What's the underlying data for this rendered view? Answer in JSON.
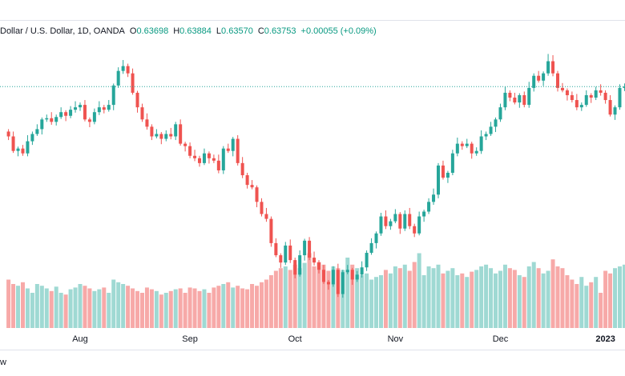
{
  "chart_data": {
    "type": "candlestick",
    "title": "Dollar / U.S. Dollar, 1D, OANDA",
    "ohlc_keys": [
      "O",
      "H",
      "L",
      "C"
    ],
    "last_labels": [
      "0.63698",
      "0.63884",
      "0.63570",
      "0.63753"
    ],
    "change": "+0.00055 (+0.09%)",
    "categories": [
      null,
      null,
      null,
      null,
      null,
      null,
      null,
      null,
      null,
      null,
      null,
      null,
      null,
      null,
      null,
      "Aug",
      null,
      null,
      null,
      null,
      null,
      null,
      null,
      null,
      null,
      null,
      null,
      null,
      null,
      null,
      null,
      null,
      null,
      null,
      null,
      null,
      null,
      null,
      "Sep",
      null,
      null,
      null,
      null,
      null,
      null,
      null,
      null,
      null,
      null,
      null,
      null,
      null,
      null,
      null,
      null,
      null,
      null,
      null,
      null,
      null,
      "Oct",
      null,
      null,
      null,
      null,
      null,
      null,
      null,
      null,
      null,
      null,
      null,
      null,
      null,
      null,
      null,
      null,
      null,
      null,
      null,
      null,
      "Nov",
      null,
      null,
      null,
      null,
      null,
      null,
      null,
      null,
      null,
      null,
      null,
      null,
      null,
      null,
      null,
      null,
      null,
      null,
      null,
      null,
      null,
      "Dec",
      null,
      null,
      null,
      null,
      null,
      null,
      null,
      null,
      null,
      null,
      null,
      null,
      null,
      null,
      null,
      null,
      null,
      null,
      null,
      null,
      null,
      "2023",
      null,
      null,
      null,
      null
    ],
    "open": [
      0.619,
      0.617,
      0.611,
      0.612,
      0.61,
      0.615,
      0.618,
      0.62,
      0.624,
      0.6245,
      0.623,
      0.625,
      0.627,
      0.6255,
      0.628,
      0.629,
      0.63,
      0.624,
      0.623,
      0.627,
      0.629,
      0.628,
      0.63,
      0.638,
      0.644,
      0.646,
      0.643,
      0.635,
      0.629,
      0.624,
      0.621,
      0.617,
      0.618,
      0.616,
      0.618,
      0.617,
      0.622,
      0.614,
      0.613,
      0.609,
      0.608,
      0.606,
      0.61,
      0.608,
      0.607,
      0.603,
      0.612,
      0.611,
      0.616,
      0.606,
      0.601,
      0.597,
      0.596,
      0.59,
      0.585,
      0.583,
      0.573,
      0.568,
      0.565,
      0.572,
      0.566,
      0.56,
      0.568,
      0.574,
      0.567,
      0.565,
      0.562,
      0.557,
      0.556,
      0.562,
      0.552,
      0.561,
      0.562,
      0.558,
      0.56,
      0.563,
      0.569,
      0.573,
      0.577,
      0.584,
      0.58,
      0.582,
      0.585,
      0.579,
      0.585,
      0.58,
      0.577,
      0.584,
      0.586,
      0.59,
      0.593,
      0.605,
      0.6,
      0.602,
      0.61,
      0.614,
      0.613,
      0.614,
      0.61,
      0.611,
      0.617,
      0.618,
      0.621,
      0.624,
      0.629,
      0.635,
      0.633,
      0.631,
      0.634,
      0.63,
      0.637,
      0.642,
      0.64,
      0.643,
      0.648,
      0.643,
      0.637,
      0.636,
      0.634,
      0.632,
      0.629,
      0.63,
      0.634,
      0.633,
      0.636,
      0.635,
      0.632,
      0.626,
      0.629,
      0.63698
    ],
    "high": [
      0.62,
      0.619,
      0.6128,
      0.6135,
      0.6175,
      0.619,
      0.622,
      0.6248,
      0.626,
      0.627,
      0.626,
      0.629,
      0.6278,
      0.6295,
      0.6315,
      0.631,
      0.632,
      0.6248,
      0.6285,
      0.6315,
      0.63,
      0.632,
      0.6388,
      0.6455,
      0.6485,
      0.647,
      0.645,
      0.6358,
      0.6305,
      0.6265,
      0.622,
      0.62,
      0.6188,
      0.6195,
      0.6205,
      0.623,
      0.624,
      0.6148,
      0.6145,
      0.6115,
      0.609,
      0.612,
      0.6108,
      0.6095,
      0.6095,
      0.613,
      0.614,
      0.6168,
      0.6175,
      0.6085,
      0.602,
      0.599,
      0.5968,
      0.5915,
      0.5875,
      0.584,
      0.575,
      0.5688,
      0.5735,
      0.5745,
      0.567,
      0.57,
      0.5748,
      0.5755,
      0.5695,
      0.566,
      0.564,
      0.5578,
      0.5635,
      0.5645,
      0.562,
      0.564,
      0.5628,
      0.5615,
      0.5655,
      0.57,
      0.575,
      0.5778,
      0.5855,
      0.5865,
      0.583,
      0.587,
      0.5858,
      0.5865,
      0.5875,
      0.581,
      0.586,
      0.5868,
      0.5915,
      0.5955,
      0.606,
      0.607,
      0.6028,
      0.6115,
      0.6165,
      0.615,
      0.616,
      0.6148,
      0.6125,
      0.6195,
      0.619,
      0.623,
      0.6248,
      0.6305,
      0.6375,
      0.636,
      0.635,
      0.6348,
      0.6355,
      0.6395,
      0.643,
      0.644,
      0.6438,
      0.651,
      0.6505,
      0.644,
      0.639,
      0.6368,
      0.6355,
      0.6345,
      0.631,
      0.636,
      0.6348,
      0.6375,
      0.6385,
      0.636,
      0.634,
      0.6298,
      0.63848,
      0.63884
    ],
    "low": [
      0.6155,
      0.6102,
      0.6088,
      0.609,
      0.6088,
      0.6135,
      0.6172,
      0.6178,
      0.623,
      0.6218,
      0.6215,
      0.6242,
      0.6233,
      0.6245,
      0.6268,
      0.6275,
      0.6232,
      0.6208,
      0.622,
      0.6258,
      0.6265,
      0.6272,
      0.6278,
      0.637,
      0.6428,
      0.6415,
      0.6342,
      0.6268,
      0.623,
      0.6198,
      0.6155,
      0.6162,
      0.6138,
      0.615,
      0.6158,
      0.6155,
      0.6132,
      0.6108,
      0.608,
      0.6068,
      0.6045,
      0.6052,
      0.6058,
      0.606,
      0.6018,
      0.6015,
      0.6102,
      0.6088,
      0.605,
      0.5998,
      0.5955,
      0.5952,
      0.5878,
      0.584,
      0.5818,
      0.5715,
      0.5672,
      0.5628,
      0.564,
      0.5648,
      0.5585,
      0.5592,
      0.5658,
      0.566,
      0.5638,
      0.5605,
      0.5562,
      0.5538,
      0.555,
      0.5508,
      0.5505,
      0.5602,
      0.5558,
      0.557,
      0.5588,
      0.5615,
      0.5682,
      0.5708,
      0.576,
      0.5788,
      0.5785,
      0.5812,
      0.5768,
      0.578,
      0.5788,
      0.5755,
      0.5762,
      0.5818,
      0.585,
      0.5888,
      0.5915,
      0.5992,
      0.5978,
      0.601,
      0.6088,
      0.6115,
      0.6122,
      0.6078,
      0.609,
      0.6098,
      0.6155,
      0.6172,
      0.6188,
      0.623,
      0.6278,
      0.6315,
      0.6302,
      0.6288,
      0.629,
      0.6288,
      0.6355,
      0.6392,
      0.6378,
      0.642,
      0.6418,
      0.6355,
      0.6352,
      0.6318,
      0.631,
      0.6278,
      0.6275,
      0.6292,
      0.6308,
      0.632,
      0.6338,
      0.6305,
      0.6252,
      0.6238,
      0.628,
      0.6357
    ],
    "close": [
      0.617,
      0.611,
      0.612,
      0.61,
      0.615,
      0.618,
      0.62,
      0.624,
      0.6245,
      0.623,
      0.625,
      0.627,
      0.6255,
      0.628,
      0.629,
      0.63,
      0.624,
      0.623,
      0.627,
      0.629,
      0.628,
      0.63,
      0.638,
      0.644,
      0.646,
      0.643,
      0.635,
      0.629,
      0.624,
      0.621,
      0.617,
      0.618,
      0.616,
      0.618,
      0.617,
      0.622,
      0.614,
      0.613,
      0.609,
      0.608,
      0.606,
      0.61,
      0.608,
      0.607,
      0.603,
      0.612,
      0.611,
      0.616,
      0.606,
      0.601,
      0.597,
      0.596,
      0.59,
      0.585,
      0.583,
      0.573,
      0.568,
      0.565,
      0.572,
      0.566,
      0.56,
      0.568,
      0.574,
      0.567,
      0.565,
      0.562,
      0.557,
      0.556,
      0.562,
      0.552,
      0.561,
      0.562,
      0.558,
      0.56,
      0.563,
      0.569,
      0.573,
      0.577,
      0.584,
      0.58,
      0.582,
      0.585,
      0.579,
      0.585,
      0.58,
      0.577,
      0.584,
      0.586,
      0.59,
      0.593,
      0.605,
      0.6,
      0.602,
      0.61,
      0.614,
      0.613,
      0.614,
      0.61,
      0.611,
      0.617,
      0.618,
      0.621,
      0.624,
      0.629,
      0.635,
      0.633,
      0.631,
      0.634,
      0.63,
      0.637,
      0.642,
      0.64,
      0.643,
      0.648,
      0.643,
      0.637,
      0.636,
      0.634,
      0.632,
      0.629,
      0.63,
      0.634,
      0.633,
      0.636,
      0.635,
      0.632,
      0.626,
      0.629,
      0.63698,
      0.63753
    ],
    "volume": [
      55,
      50,
      48,
      52,
      45,
      40,
      50,
      48,
      45,
      42,
      47,
      40,
      38,
      44,
      46,
      50,
      48,
      45,
      42,
      44,
      46,
      40,
      55,
      52,
      50,
      48,
      45,
      42,
      40,
      46,
      44,
      42,
      38,
      40,
      42,
      44,
      45,
      40,
      46,
      45,
      42,
      44,
      40,
      46,
      48,
      50,
      52,
      46,
      48,
      45,
      44,
      50,
      48,
      52,
      55,
      60,
      65,
      68,
      70,
      66,
      72,
      68,
      74,
      85,
      70,
      75,
      72,
      65,
      70,
      68,
      66,
      80,
      72,
      68,
      60,
      62,
      55,
      58,
      60,
      66,
      62,
      70,
      68,
      72,
      65,
      75,
      85,
      60,
      70,
      68,
      72,
      62,
      65,
      68,
      60,
      62,
      58,
      64,
      66,
      70,
      72,
      68,
      62,
      65,
      72,
      68,
      66,
      60,
      58,
      70,
      75,
      68,
      62,
      65,
      78,
      70,
      68,
      60,
      55,
      50,
      58,
      48,
      52,
      58,
      40,
      65,
      62,
      68,
      70,
      72
    ],
    "ylim": [
      0.538,
      0.665
    ],
    "vlim": [
      0,
      100
    ],
    "up_color": "#26a69a",
    "down_color": "#ef5350",
    "up_volume_color": "#9fd9d3",
    "down_volume_color": "#f7a9a8"
  },
  "footer": "w"
}
